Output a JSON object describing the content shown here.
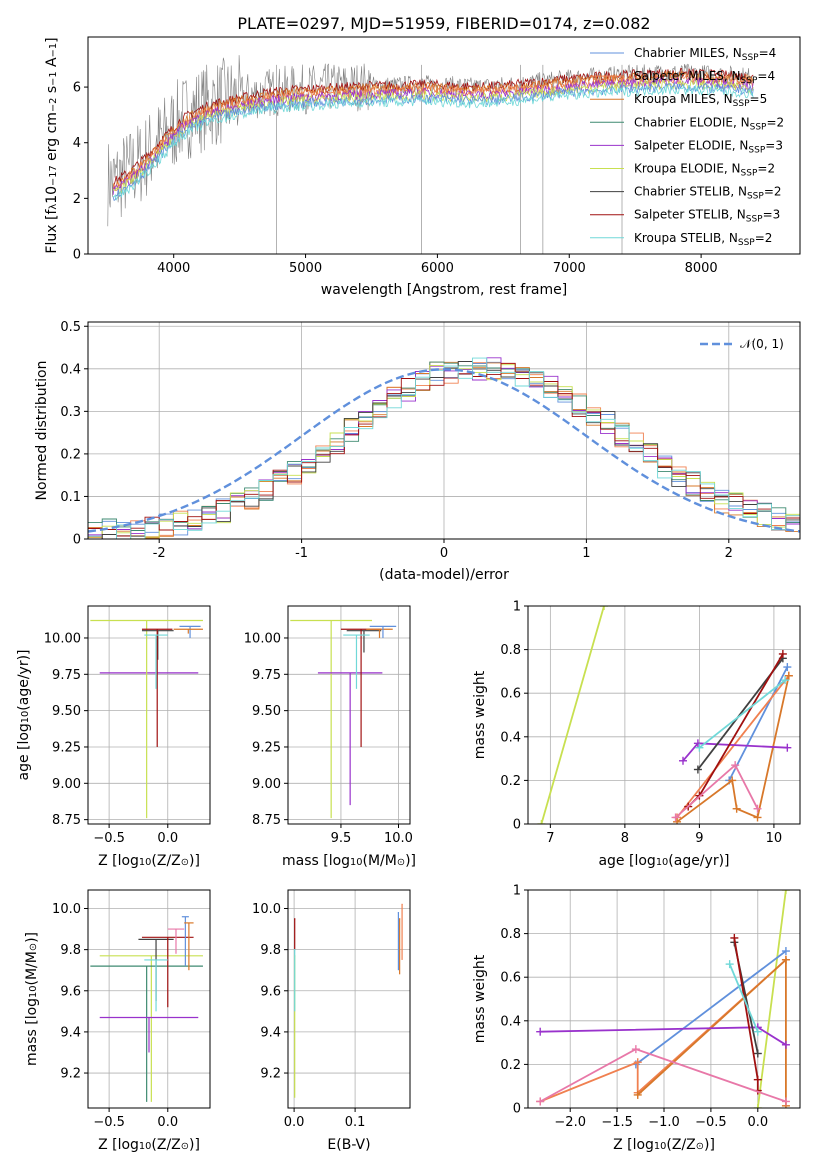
{
  "figure_title": "PLATE=0297, MJD=51959, FIBERID=0174, z=0.082",
  "colors": {
    "Chabrier MILES": "#6090dc",
    "Salpeter MILES": "#f08050",
    "Kroupa MILES": "#d8782a",
    "Chabrier ELODIE": "#3e8a70",
    "Salpeter ELODIE": "#9932cc",
    "Kroupa ELODIE": "#c8e050",
    "Chabrier STELIB": "#404040",
    "Salpeter STELIB": "#a01010",
    "Kroupa STELIB": "#70d8d8",
    "data": "#808080",
    "pink": "#e878a8"
  },
  "chart_data": [
    {
      "id": "spectrum",
      "type": "line",
      "xlabel": "wavelength [Angstrom, rest frame]",
      "ylabel_parts": [
        "Flux [",
        "f",
        "λ",
        "10",
        "−17",
        " erg cm",
        "−2",
        " s",
        "−1",
        " A",
        "−1",
        "]"
      ],
      "xlim": [
        3350,
        8750
      ],
      "ylim": [
        0,
        7.8
      ],
      "xticks": [
        4000,
        5000,
        6000,
        7000,
        8000
      ],
      "yticks": [
        0,
        2,
        4,
        6
      ],
      "grid": false,
      "legend_placement": "upper right",
      "series": [
        {
          "name": "Chabrier MILES",
          "sub": "SSP",
          "suffix": "=4"
        },
        {
          "name": "Salpeter MILES",
          "sub": "SSP",
          "suffix": "=4"
        },
        {
          "name": "Kroupa MILES",
          "sub": "SSP",
          "suffix": "=5"
        },
        {
          "name": "Chabrier ELODIE",
          "sub": "SSP",
          "suffix": "=2"
        },
        {
          "name": "Salpeter ELODIE",
          "sub": "SSP",
          "suffix": "=3"
        },
        {
          "name": "Kroupa ELODIE",
          "sub": "SSP",
          "suffix": "=2"
        },
        {
          "name": "Chabrier STELIB",
          "sub": "SSP",
          "suffix": "=2"
        },
        {
          "name": "Salpeter STELIB",
          "sub": "SSP",
          "suffix": "=3"
        },
        {
          "name": "Kroupa STELIB",
          "sub": "SSP",
          "suffix": "=2"
        }
      ],
      "model_continuum": {
        "x": [
          3550,
          3650,
          3750,
          3850,
          3950,
          4050,
          4150,
          4300,
          4500,
          4700,
          4900,
          5100,
          5300,
          5500,
          5700,
          5900,
          6100,
          6300,
          6500,
          6700,
          6900,
          7100,
          7300,
          7500,
          7700,
          7900,
          8100,
          8300,
          8400
        ],
        "y": [
          2.6,
          2.9,
          3.3,
          3.8,
          4.3,
          4.8,
          5.1,
          5.4,
          5.6,
          5.8,
          5.9,
          5.95,
          6.0,
          6.05,
          6.05,
          6.1,
          6.05,
          6.0,
          6.05,
          6.15,
          6.25,
          6.35,
          6.4,
          6.45,
          6.5,
          6.5,
          6.45,
          6.4,
          6.35
        ]
      }
    },
    {
      "id": "residuals",
      "type": "histogram",
      "xlabel": "(data-model)/error",
      "ylabel": "Normed distribution",
      "xlim": [
        -2.5,
        2.5
      ],
      "ylim": [
        0,
        0.51
      ],
      "xticks": [
        -2,
        -1,
        0,
        1,
        2
      ],
      "yticks": [
        0.0,
        0.1,
        0.2,
        0.3,
        0.4,
        0.5
      ],
      "grid": true,
      "legend_placement": "upper right",
      "reference_curve": {
        "label": "N(0,1)",
        "mean": 0,
        "sigma": 1
      },
      "bin_width": 0.1,
      "histogram_envelope": {
        "x": [
          -2.45,
          -2.05,
          -1.65,
          -1.25,
          -0.85,
          -0.45,
          -0.05,
          0.35,
          0.75,
          1.15,
          1.55,
          1.95,
          2.35,
          2.45
        ],
        "y": [
          0.015,
          0.025,
          0.05,
          0.11,
          0.2,
          0.31,
          0.39,
          0.4,
          0.36,
          0.27,
          0.17,
          0.09,
          0.045,
          0.04
        ]
      }
    },
    {
      "id": "age_vs_Z",
      "type": "scatter",
      "xlabel_parts": [
        "Z [log",
        "10",
        "(Z/Z",
        "⊙",
        ")]"
      ],
      "ylabel_parts": [
        "age  [log",
        "10",
        "(age/yr)]"
      ],
      "xlim": [
        -0.68,
        0.36
      ],
      "ylim": [
        8.72,
        10.22
      ],
      "xticks": [
        -0.5,
        0.0
      ],
      "xtick_labels": [
        "−0.5",
        "0.0"
      ],
      "yticks": [
        8.75,
        9.0,
        9.25,
        9.5,
        9.75,
        10.0
      ],
      "ytick_labels": [
        "8.75",
        "9.00",
        "9.25",
        "9.50",
        "9.75",
        "10.00"
      ],
      "grid": true,
      "crosses": [
        {
          "model": "Chabrier MILES",
          "x": [
            0.1,
            0.28
          ],
          "y": [
            10.0,
            10.08
          ]
        },
        {
          "model": "Kroupa MILES",
          "x": [
            0.05,
            0.3
          ],
          "y": [
            10.03,
            10.06
          ]
        },
        {
          "model": "Salpeter ELODIE",
          "x": [
            -0.58,
            0.26
          ],
          "y": [
            9.76,
            9.76
          ]
        },
        {
          "model": "Kroupa ELODIE",
          "x": [
            -0.66,
            0.3
          ],
          "y": [
            8.76,
            10.12
          ]
        },
        {
          "model": "Chabrier STELIB",
          "x": [
            -0.22,
            0.05
          ],
          "y": [
            9.85,
            10.05
          ]
        },
        {
          "model": "Salpeter STELIB",
          "x": [
            -0.22,
            0.04
          ],
          "y": [
            9.25,
            10.06
          ]
        },
        {
          "model": "Kroupa STELIB",
          "x": [
            -0.2,
            0.0
          ],
          "y": [
            9.65,
            10.02
          ]
        }
      ]
    },
    {
      "id": "age_vs_mass",
      "type": "scatter",
      "xlabel_parts": [
        "mass [log",
        "10",
        "(M/M",
        "⊙",
        ")]"
      ],
      "ylabel": "",
      "xlim": [
        9.04,
        10.1
      ],
      "ylim": [
        8.72,
        10.22
      ],
      "xticks": [
        9.5,
        10.0
      ],
      "xtick_labels": [
        "9.5",
        "10.0"
      ],
      "yticks": [
        8.75,
        9.0,
        9.25,
        9.5,
        9.75,
        10.0
      ],
      "ytick_labels": [
        "8.75",
        "9.00",
        "9.25",
        "9.50",
        "9.75",
        "10.00"
      ],
      "grid": true,
      "crosses": [
        {
          "model": "Kroupa ELODIE",
          "x": [
            9.06,
            9.77
          ],
          "y": [
            8.76,
            10.12
          ]
        },
        {
          "model": "Salpeter ELODIE",
          "x": [
            9.3,
            9.86
          ],
          "y": [
            8.85,
            9.76
          ]
        },
        {
          "model": "Chabrier STELIB",
          "x": [
            9.55,
            9.85
          ],
          "y": [
            9.9,
            10.05
          ]
        },
        {
          "model": "Salpeter STELIB",
          "x": [
            9.5,
            9.85
          ],
          "y": [
            9.25,
            10.06
          ]
        },
        {
          "model": "Kroupa STELIB",
          "x": [
            9.52,
            9.75
          ],
          "y": [
            9.65,
            10.02
          ]
        },
        {
          "model": "Kroupa MILES",
          "x": [
            9.72,
            9.95
          ],
          "y": [
            10.0,
            10.06
          ]
        },
        {
          "model": "Chabrier MILES",
          "x": [
            9.75,
            9.98
          ],
          "y": [
            10.0,
            10.08
          ]
        }
      ]
    },
    {
      "id": "weight_vs_age",
      "type": "line",
      "xlabel_parts": [
        "age  [log",
        "10",
        "(age/yr)]"
      ],
      "ylabel": "mass weight",
      "xlim": [
        6.7,
        10.35
      ],
      "ylim": [
        0,
        1.0
      ],
      "xticks": [
        7,
        8,
        9,
        10
      ],
      "yticks": [
        0.0,
        0.2,
        0.4,
        0.6,
        0.8,
        1.0
      ],
      "grid": true,
      "series": [
        {
          "model": "Kroupa ELODIE",
          "x": [
            6.88,
            7.72
          ],
          "y": [
            0.0,
            1.0
          ]
        },
        {
          "model": "Chabrier MILES",
          "x": [
            9.4,
            10.18
          ],
          "y": [
            0.2,
            0.72
          ]
        },
        {
          "model": "Salpeter MILES",
          "x": [
            8.7,
            10.2
          ],
          "y": [
            0.03,
            0.68
          ]
        },
        {
          "model": "Kroupa MILES",
          "x": [
            8.7,
            9.44,
            9.5,
            9.78,
            10.2
          ],
          "y": [
            0.01,
            0.2,
            0.07,
            0.03,
            0.68
          ]
        },
        {
          "model": "Salpeter ELODIE",
          "x": [
            8.78,
            8.98,
            10.18
          ],
          "y": [
            0.29,
            0.37,
            0.35
          ]
        },
        {
          "model": "Chabrier STELIB",
          "x": [
            8.98,
            10.12
          ],
          "y": [
            0.25,
            0.76
          ]
        },
        {
          "model": "Salpeter STELIB",
          "x": [
            8.85,
            9.0,
            10.12
          ],
          "y": [
            0.08,
            0.13,
            0.78
          ]
        },
        {
          "model": "Kroupa STELIB",
          "x": [
            9.0,
            10.15
          ],
          "y": [
            0.35,
            0.66
          ]
        },
        {
          "model": "pink",
          "x": [
            8.68,
            9.48,
            9.78
          ],
          "y": [
            0.03,
            0.27,
            0.07
          ]
        }
      ]
    },
    {
      "id": "mass_vs_Z",
      "type": "scatter",
      "xlabel_parts": [
        "Z [log",
        "10",
        "(Z/Z",
        "⊙",
        ")]"
      ],
      "ylabel_parts": [
        "mass [log",
        "10",
        "(M/M",
        "⊙",
        ")]"
      ],
      "xlim": [
        -0.68,
        0.36
      ],
      "ylim": [
        9.03,
        10.09
      ],
      "xticks": [
        -0.5,
        0.0
      ],
      "xtick_labels": [
        "−0.5",
        "0.0"
      ],
      "yticks": [
        9.2,
        9.4,
        9.6,
        9.8,
        10.0
      ],
      "ytick_labels": [
        "9.2",
        "9.4",
        "9.6",
        "9.8",
        "10.0"
      ],
      "grid": true,
      "crosses": [
        {
          "model": "Kroupa ELODIE",
          "x": [
            -0.58,
            0.3
          ],
          "y": [
            9.06,
            9.77
          ]
        },
        {
          "model": "Chabrier ELODIE",
          "x": [
            -0.66,
            0.3
          ],
          "y": [
            9.06,
            9.72
          ]
        },
        {
          "model": "Salpeter ELODIE",
          "x": [
            -0.58,
            0.26
          ],
          "y": [
            9.3,
            9.47
          ]
        },
        {
          "model": "Chabrier STELIB",
          "x": [
            -0.25,
            0.05
          ],
          "y": [
            9.55,
            9.85
          ]
        },
        {
          "model": "Salpeter STELIB",
          "x": [
            -0.22,
            0.22
          ],
          "y": [
            9.52,
            9.86
          ]
        },
        {
          "model": "Kroupa STELIB",
          "x": [
            -0.2,
            0.0
          ],
          "y": [
            9.5,
            9.75
          ]
        },
        {
          "model": "Chabrier MILES",
          "x": [
            0.12,
            0.18
          ],
          "y": [
            9.72,
            9.96
          ]
        },
        {
          "model": "Kroupa MILES",
          "x": [
            0.14,
            0.22
          ],
          "y": [
            9.7,
            9.93
          ]
        },
        {
          "model": "pink",
          "x": [
            0.0,
            0.14
          ],
          "y": [
            9.78,
            9.9
          ]
        }
      ]
    },
    {
      "id": "mass_vs_ebv",
      "type": "scatter",
      "xlabel": "E(B-V)",
      "ylabel": "",
      "xlim": [
        -0.01,
        0.19
      ],
      "ylim": [
        9.03,
        10.09
      ],
      "xticks": [
        0.0,
        0.1
      ],
      "xtick_labels": [
        "0.0",
        "0.1"
      ],
      "yticks": [
        9.2,
        9.4,
        9.6,
        9.8,
        10.0
      ],
      "ytick_labels": [
        "9.2",
        "9.4",
        "9.6",
        "9.8",
        "10.0"
      ],
      "grid": true,
      "crosses": [
        {
          "model": "Kroupa ELODIE",
          "x": [
            0.0,
            0.002
          ],
          "y": [
            9.08,
            9.77
          ]
        },
        {
          "model": "Salpeter STELIB",
          "x": [
            0.0,
            0.002
          ],
          "y": [
            9.8,
            9.95
          ]
        },
        {
          "model": "Kroupa STELIB",
          "x": [
            0.0,
            0.002
          ],
          "y": [
            9.5,
            9.8
          ]
        },
        {
          "model": "Chabrier MILES",
          "x": [
            0.17,
            0.172
          ],
          "y": [
            9.7,
            9.98
          ]
        },
        {
          "model": "Salpeter MILES",
          "x": [
            0.176,
            0.178
          ],
          "y": [
            9.75,
            10.02
          ]
        },
        {
          "model": "Kroupa MILES",
          "x": [
            0.172,
            0.174
          ],
          "y": [
            9.68,
            9.95
          ]
        }
      ]
    },
    {
      "id": "weight_vs_Z",
      "type": "line",
      "xlabel_parts": [
        "Z [log",
        "10",
        "(Z/Z",
        "⊙",
        ")]"
      ],
      "ylabel": "mass weight",
      "xlim": [
        -2.45,
        0.45
      ],
      "ylim": [
        0,
        1.0
      ],
      "xticks": [
        -2.0,
        -1.5,
        -1.0,
        -0.5,
        0.0
      ],
      "xtick_labels": [
        "−2.0",
        "−1.5",
        "−1.0",
        "−0.5",
        "0.0"
      ],
      "yticks": [
        0.0,
        0.2,
        0.4,
        0.6,
        0.8,
        1.0
      ],
      "grid": true,
      "series": [
        {
          "model": "Kroupa ELODIE",
          "x": [
            0.0,
            0.3
          ],
          "y": [
            0.0,
            1.0
          ]
        },
        {
          "model": "Chabrier MILES",
          "x": [
            -1.3,
            0.3
          ],
          "y": [
            0.2,
            0.72
          ]
        },
        {
          "model": "Salpeter MILES",
          "x": [
            -2.32,
            -1.28,
            -1.28,
            0.3
          ],
          "y": [
            0.03,
            0.21,
            0.07,
            0.68
          ]
        },
        {
          "model": "Kroupa MILES",
          "x": [
            -1.28,
            0.3,
            0.3
          ],
          "y": [
            0.06,
            0.68,
            0.01
          ]
        },
        {
          "model": "Salpeter ELODIE",
          "x": [
            -2.32,
            0.0,
            0.3
          ],
          "y": [
            0.35,
            0.37,
            0.29
          ]
        },
        {
          "model": "Chabrier STELIB",
          "x": [
            -0.25,
            0.0
          ],
          "y": [
            0.76,
            0.25
          ]
        },
        {
          "model": "Salpeter STELIB",
          "x": [
            -0.25,
            0.0,
            0.0
          ],
          "y": [
            0.78,
            0.13,
            0.08
          ]
        },
        {
          "model": "Kroupa STELIB",
          "x": [
            -0.3,
            0.0
          ],
          "y": [
            0.66,
            0.35
          ]
        },
        {
          "model": "pink",
          "x": [
            -2.32,
            -1.3,
            0.3
          ],
          "y": [
            0.03,
            0.27,
            0.03
          ]
        }
      ]
    }
  ]
}
